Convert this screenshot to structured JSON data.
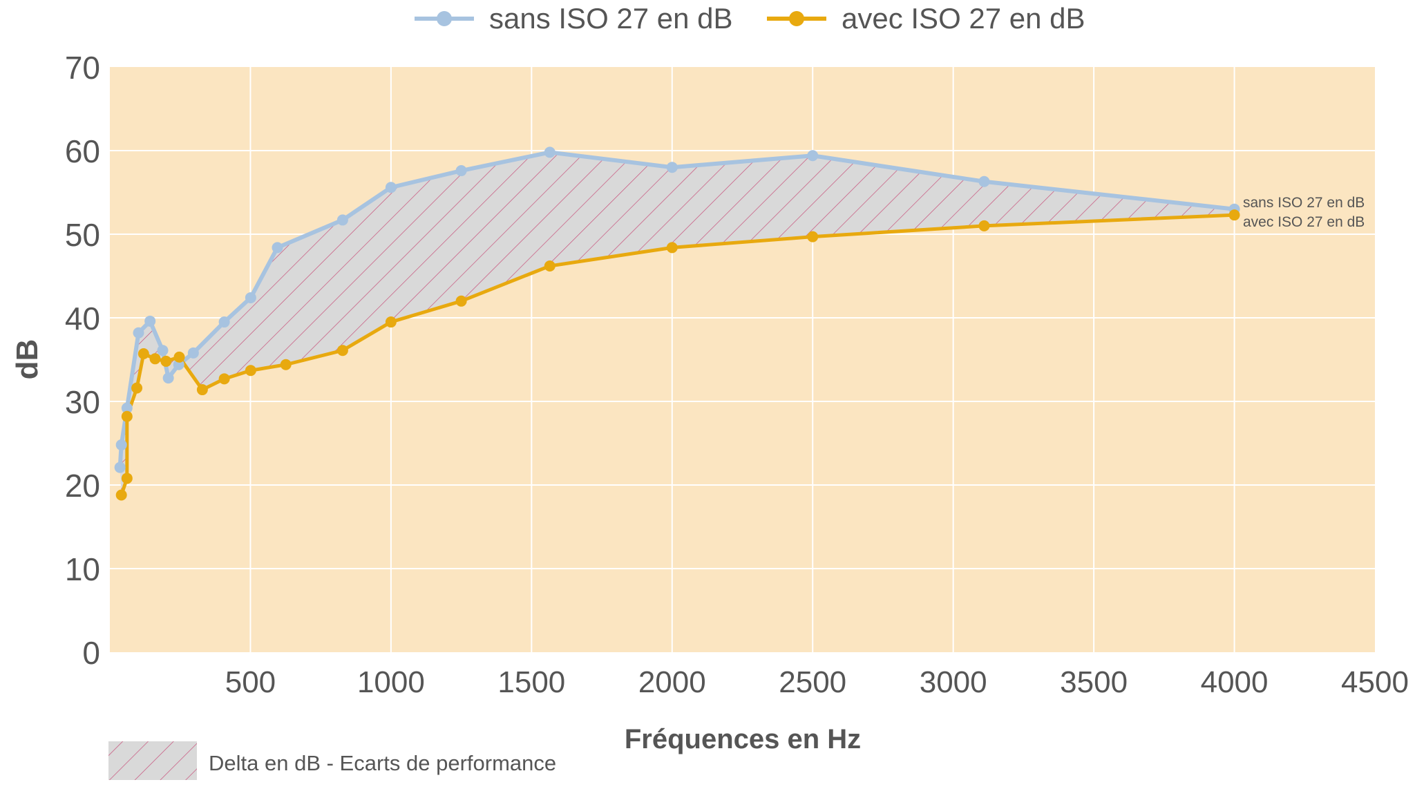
{
  "chart_data": {
    "type": "line",
    "title": "",
    "xlabel": "Fréquences en Hz",
    "ylabel": "dB",
    "xlim": [
      0,
      4500
    ],
    "ylim": [
      0,
      70
    ],
    "xticks": [
      500,
      1000,
      1500,
      2000,
      2500,
      3000,
      3500,
      4000,
      4500
    ],
    "yticks": [
      0,
      10,
      20,
      30,
      40,
      50,
      60,
      70
    ],
    "grid": true,
    "legend_placement": "top",
    "colors": {
      "plot_background": "#fbe5c1",
      "sans": "#a7c3e0",
      "avec": "#e8a90f",
      "delta_fill": "#d9d9d9",
      "delta_hatch": "#c8507a",
      "grid": "#ffffff",
      "text": "#555555"
    },
    "series": [
      {
        "name": "sans ISO 27 en dB",
        "end_label": "sans ISO 27 en dB",
        "x": [
          36,
          41,
          61,
          102,
          143,
          188,
          208,
          245,
          297,
          407,
          501,
          596,
          828,
          1000,
          1250,
          1565,
          2000,
          2500,
          3110,
          4000
        ],
        "y": [
          22.1,
          24.8,
          29.2,
          38.2,
          39.6,
          36.1,
          32.8,
          34.4,
          35.8,
          39.5,
          42.4,
          48.4,
          51.7,
          55.6,
          57.6,
          59.8,
          58.0,
          59.4,
          56.3,
          53.0
        ]
      },
      {
        "name": "avec ISO 27 en dB",
        "end_label": "avec ISO 27 en dB",
        "x": [
          41,
          61,
          61,
          96,
          120,
          161,
          200,
          247,
          329,
          407,
          501,
          626,
          828,
          1000,
          1250,
          1565,
          2000,
          2500,
          3110,
          4000
        ],
        "y": [
          18.8,
          20.8,
          28.2,
          31.6,
          35.7,
          35.1,
          34.8,
          35.3,
          31.4,
          32.7,
          33.7,
          34.4,
          36.1,
          39.5,
          42.0,
          46.2,
          48.4,
          49.7,
          51.0,
          52.3
        ]
      }
    ],
    "delta_legend": "Delta en dB - Ecarts de performance"
  }
}
